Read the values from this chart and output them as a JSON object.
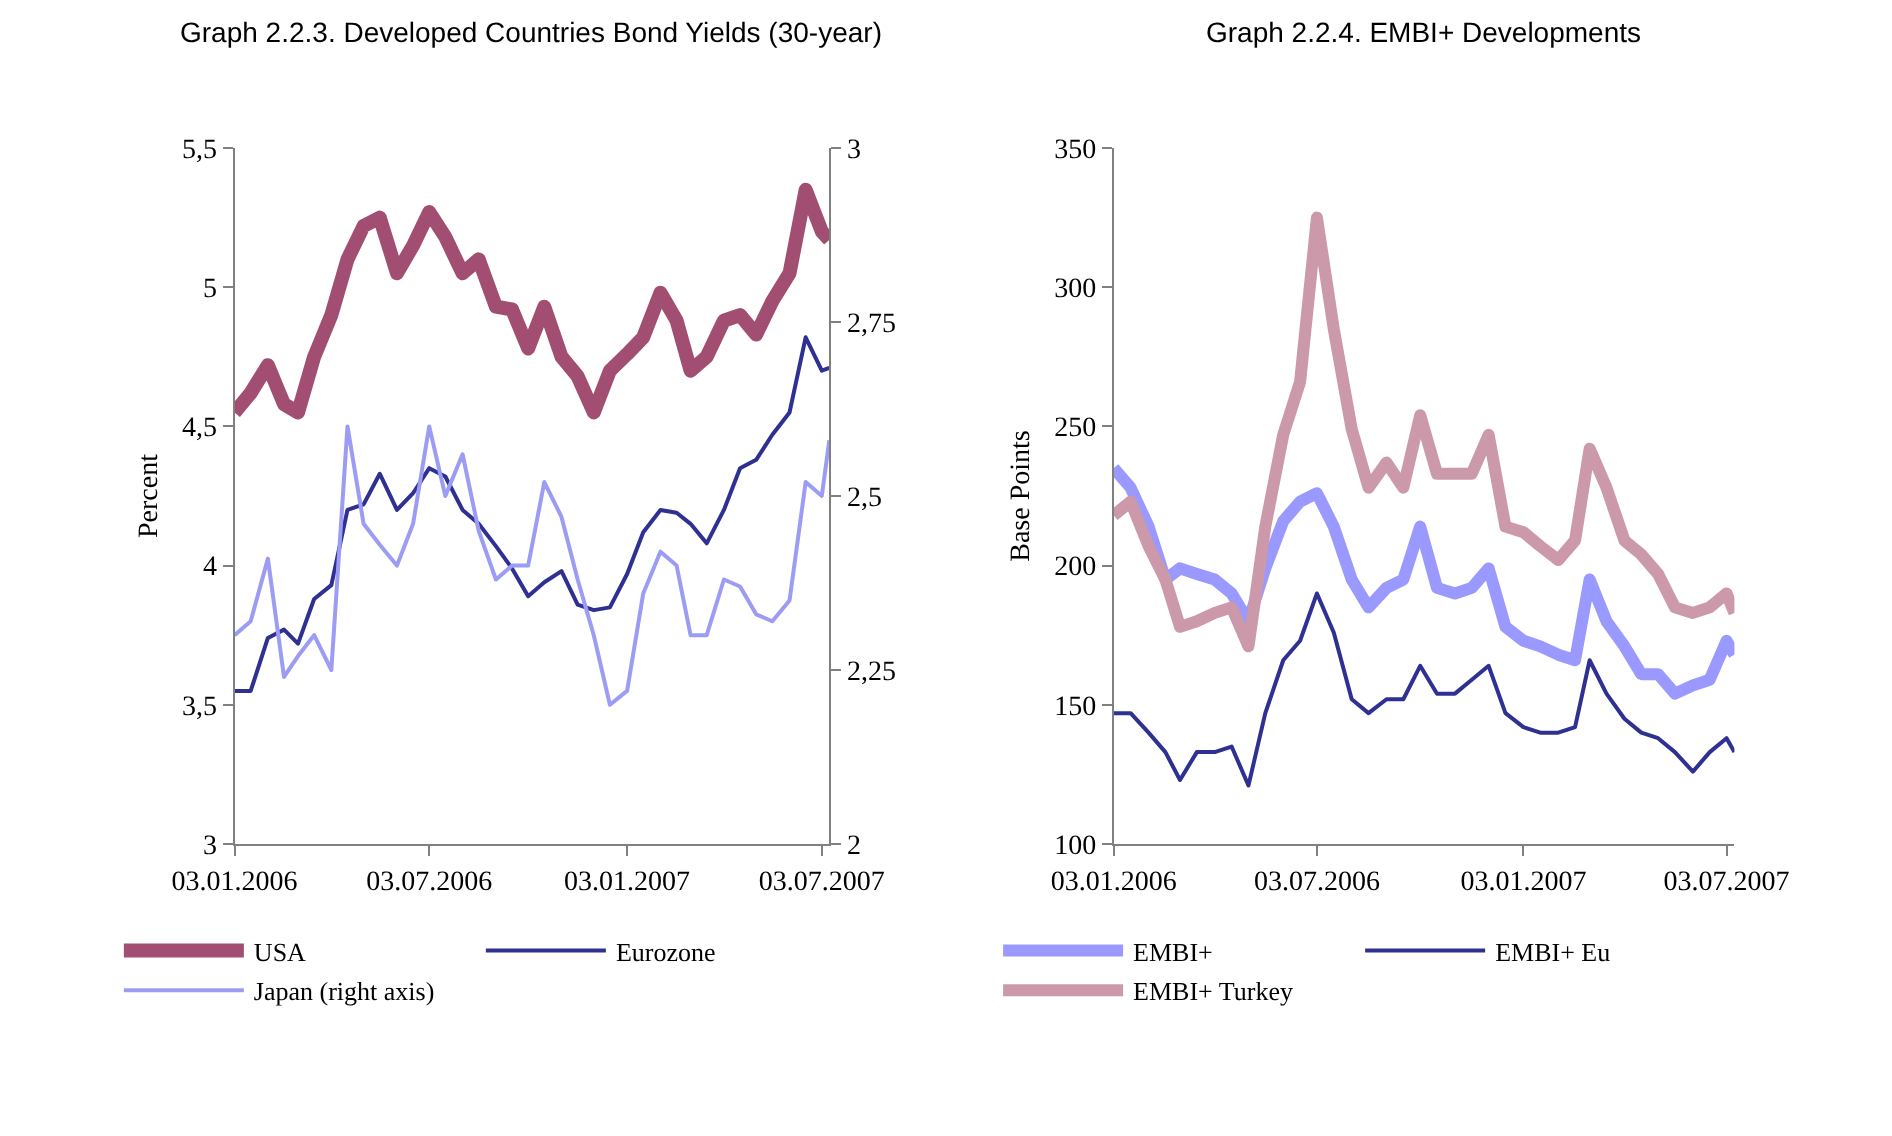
{
  "chart_data": [
    {
      "type": "line",
      "title": "Graph 2.2.3. Developed Countries Bond Yields (30-year)",
      "ylabel": "Percent",
      "legend": "bottom",
      "x": [
        "2006-01-03",
        "2006-01-18",
        "2006-02-03",
        "2006-02-18",
        "2006-03-03",
        "2006-03-18",
        "2006-04-03",
        "2006-04-18",
        "2006-05-03",
        "2006-05-18",
        "2006-06-03",
        "2006-06-18",
        "2006-07-03",
        "2006-07-18",
        "2006-08-03",
        "2006-08-18",
        "2006-09-03",
        "2006-09-18",
        "2006-10-03",
        "2006-10-18",
        "2006-11-03",
        "2006-11-18",
        "2006-12-03",
        "2006-12-18",
        "2007-01-03",
        "2007-01-18",
        "2007-02-03",
        "2007-02-18",
        "2007-03-03",
        "2007-03-18",
        "2007-04-03",
        "2007-04-18",
        "2007-05-03",
        "2007-05-18",
        "2007-06-03",
        "2007-06-18",
        "2007-07-03",
        "2007-07-10"
      ],
      "xlim": [
        "2006-01-03",
        "2007-07-10"
      ],
      "xticks": [
        {
          "value": "2006-01-03",
          "label": "03.01.2006"
        },
        {
          "value": "2006-07-03",
          "label": "03.07.2006"
        },
        {
          "value": "2007-01-03",
          "label": "03.01.2007"
        },
        {
          "value": "2007-07-03",
          "label": "03.07.2007"
        }
      ],
      "ylim": [
        3,
        5.5
      ],
      "yticks": [
        3,
        {
          "value": 3.5,
          "label": "3,5"
        },
        4,
        {
          "value": 4.5,
          "label": "4,5"
        },
        5,
        {
          "value": 5.5,
          "label": "5,5"
        }
      ],
      "y2lim": [
        2,
        3
      ],
      "y2ticks": [
        2,
        {
          "value": 2.25,
          "label": "2,25"
        },
        {
          "value": 2.5,
          "label": "2,5"
        },
        {
          "value": 2.75,
          "label": "2,75"
        },
        3
      ],
      "series": [
        {
          "name": "USA",
          "color": "#a24d72",
          "values": [
            4.55,
            4.62,
            4.72,
            4.58,
            4.55,
            4.75,
            4.9,
            5.1,
            5.22,
            5.25,
            5.05,
            5.15,
            5.27,
            5.18,
            5.05,
            5.1,
            4.93,
            4.92,
            4.78,
            4.93,
            4.75,
            4.68,
            4.55,
            4.7,
            4.76,
            4.82,
            4.98,
            4.88,
            4.7,
            4.75,
            4.88,
            4.9,
            4.83,
            4.95,
            5.05,
            5.35,
            5.2,
            5.17
          ]
        },
        {
          "name": "Eurozone",
          "color": "#2e3192",
          "values": [
            3.55,
            3.55,
            3.74,
            3.77,
            3.72,
            3.88,
            3.93,
            4.2,
            4.22,
            4.33,
            4.2,
            4.26,
            4.35,
            4.32,
            4.2,
            4.15,
            4.07,
            3.99,
            3.89,
            3.94,
            3.98,
            3.86,
            3.84,
            3.85,
            3.97,
            4.12,
            4.2,
            4.19,
            4.15,
            4.08,
            4.2,
            4.35,
            4.38,
            4.47,
            4.55,
            4.82,
            4.7,
            4.71
          ]
        },
        {
          "name": "Japan (right axis)",
          "color": "#9c9cf5",
          "axis": "y2",
          "values": [
            2.3,
            2.32,
            2.41,
            2.24,
            2.27,
            2.3,
            2.25,
            2.6,
            2.46,
            2.43,
            2.4,
            2.46,
            2.6,
            2.5,
            2.56,
            2.45,
            2.38,
            2.4,
            2.4,
            2.52,
            2.47,
            2.38,
            2.3,
            2.2,
            2.22,
            2.36,
            2.42,
            2.4,
            2.3,
            2.3,
            2.38,
            2.37,
            2.33,
            2.32,
            2.35,
            2.52,
            2.5,
            2.58
          ]
        }
      ]
    },
    {
      "type": "line",
      "title": "Graph 2.2.4. EMBI+ Developments",
      "ylabel": "Base Points",
      "legend": "bottom",
      "x": [
        "2006-01-03",
        "2006-01-18",
        "2006-02-03",
        "2006-02-18",
        "2006-03-03",
        "2006-03-18",
        "2006-04-03",
        "2006-04-18",
        "2006-05-03",
        "2006-05-18",
        "2006-06-03",
        "2006-06-18",
        "2006-07-03",
        "2006-07-18",
        "2006-08-03",
        "2006-08-18",
        "2006-09-03",
        "2006-09-18",
        "2006-10-03",
        "2006-10-18",
        "2006-11-03",
        "2006-11-18",
        "2006-12-03",
        "2006-12-18",
        "2007-01-03",
        "2007-01-18",
        "2007-02-03",
        "2007-02-18",
        "2007-03-03",
        "2007-03-18",
        "2007-04-03",
        "2007-04-18",
        "2007-05-03",
        "2007-05-18",
        "2007-06-03",
        "2007-06-18",
        "2007-07-03",
        "2007-07-10"
      ],
      "xlim": [
        "2006-01-03",
        "2007-07-10"
      ],
      "xticks": [
        {
          "value": "2006-01-03",
          "label": "03.01.2006"
        },
        {
          "value": "2006-07-03",
          "label": "03.07.2006"
        },
        {
          "value": "2007-01-03",
          "label": "03.01.2007"
        },
        {
          "value": "2007-07-03",
          "label": "03.07.2007"
        }
      ],
      "ylim": [
        100,
        350
      ],
      "yticks": [
        100,
        150,
        200,
        250,
        300,
        350
      ],
      "series": [
        {
          "name": "EMBI+",
          "color": "#9999ff",
          "values": [
            235,
            228,
            214,
            195,
            199,
            197,
            195,
            190,
            180,
            199,
            216,
            223,
            226,
            214,
            195,
            185,
            192,
            195,
            214,
            192,
            190,
            192,
            199,
            178,
            173,
            171,
            168,
            166,
            195,
            180,
            171,
            161,
            161,
            154,
            157,
            159,
            173,
            168
          ]
        },
        {
          "name": "EMBI+ Eu",
          "color": "#2e3192",
          "values": [
            147,
            147,
            140,
            133,
            123,
            133,
            133,
            135,
            121,
            147,
            166,
            173,
            190,
            176,
            152,
            147,
            152,
            152,
            164,
            154,
            154,
            159,
            164,
            147,
            142,
            140,
            140,
            142,
            166,
            154,
            145,
            140,
            138,
            133,
            126,
            133,
            138,
            133
          ]
        },
        {
          "name": "EMBI+ Turkey",
          "color": "#cc99aa",
          "values": [
            218,
            223,
            207,
            195,
            178,
            180,
            183,
            185,
            171,
            214,
            247,
            266,
            325,
            285,
            249,
            228,
            237,
            228,
            254,
            233,
            233,
            233,
            247,
            214,
            212,
            207,
            202,
            209,
            242,
            228,
            209,
            204,
            197,
            185,
            183,
            185,
            190,
            183
          ]
        }
      ]
    }
  ]
}
